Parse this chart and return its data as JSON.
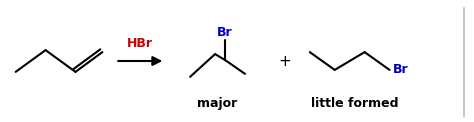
{
  "bg_color": "#ffffff",
  "reagent_text": "HBr",
  "reagent_color": "#cc0000",
  "major_label": "major",
  "minor_label": "little formed",
  "label_color": "#000000",
  "bond_color": "#000000",
  "br_color": "#0000bb",
  "plus_text": "+",
  "figsize": [
    4.74,
    1.22
  ],
  "dpi": 100,
  "xlim": [
    0,
    47.4
  ],
  "ylim": [
    0,
    12.2
  ]
}
